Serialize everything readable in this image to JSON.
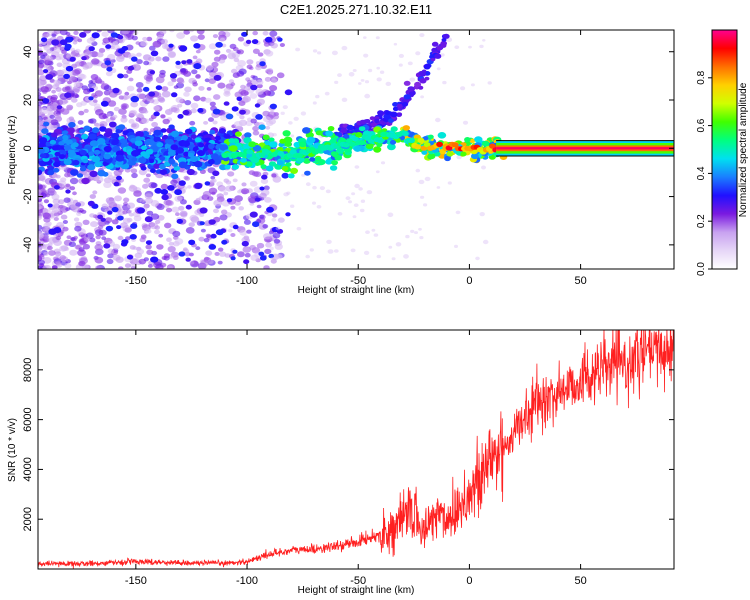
{
  "chart_data": [
    {
      "type": "heatmap",
      "title": "C2E1.2025.271.10.32.E11",
      "xlabel": "Height of straight line (km)",
      "ylabel": "Frequency (Hz)",
      "xlim": [
        -194,
        92
      ],
      "ylim": [
        -50,
        49
      ],
      "xticks": [
        -150,
        -100,
        -50,
        0,
        50
      ],
      "yticks": [
        -40,
        -20,
        0,
        20,
        40
      ],
      "colorbar": {
        "label": "Normalized spectral amplitude",
        "range": [
          0.0,
          1.0
        ],
        "ticks": [
          0.0,
          0.2,
          0.4,
          0.6,
          0.8
        ],
        "tick_labels": [
          "0.0",
          "0.2",
          "0.4",
          "0.6",
          "0.8"
        ],
        "colors": [
          "#ffffff",
          "#e6d6f7",
          "#c8a2f0",
          "#7a1ae0",
          "#2010ff",
          "#1a7fff",
          "#00e0f0",
          "#00ff80",
          "#40ff00",
          "#d0ff00",
          "#ffd000",
          "#ff7000",
          "#ff0000",
          "#ff0090"
        ]
      },
      "series": [
        {
          "name": "main Doppler trace",
          "x": [
            -110,
            -95,
            -80,
            -70,
            -60,
            -50,
            -40,
            -30,
            -25,
            -20,
            -10,
            0,
            5,
            10,
            15,
            92
          ],
          "y": [
            -3,
            -2.5,
            -2,
            -1,
            1,
            3,
            4,
            6,
            2,
            1,
            0,
            0,
            -1,
            0,
            0,
            0
          ]
        },
        {
          "name": "upper branch",
          "x": [
            -60,
            -50,
            -40,
            -35,
            -30,
            -25,
            -20,
            -15,
            -10
          ],
          "y": [
            5,
            8,
            11,
            13,
            18,
            26,
            32,
            40,
            46
          ]
        }
      ]
    },
    {
      "type": "line",
      "xlabel": "Height of straight line (km)",
      "ylabel": "SNR (10 * v/v)",
      "xlim": [
        -194,
        92
      ],
      "ylim": [
        0,
        9600
      ],
      "xticks": [
        -150,
        -100,
        -50,
        0,
        50
      ],
      "yticks": [
        2000,
        4000,
        6000,
        8000
      ],
      "color": "#ff2020",
      "series": [
        {
          "name": "SNR",
          "x": [
            -194,
            -170,
            -150,
            -130,
            -110,
            -100,
            -90,
            -80,
            -70,
            -60,
            -50,
            -40,
            -35,
            -30,
            -27,
            -25,
            -22,
            -20,
            -15,
            -10,
            -5,
            0,
            5,
            10,
            15,
            20,
            25,
            30,
            35,
            40,
            45,
            50,
            55,
            60,
            65,
            70,
            75,
            80,
            85,
            92
          ],
          "y": [
            200,
            220,
            300,
            250,
            230,
            300,
            600,
            750,
            800,
            900,
            1100,
            1400,
            1600,
            1900,
            2500,
            2300,
            1600,
            1500,
            2300,
            2000,
            2500,
            3000,
            3500,
            4500,
            4800,
            5500,
            6000,
            6700,
            6800,
            7100,
            7300,
            7600,
            7800,
            8000,
            8300,
            8100,
            8500,
            8700,
            8700,
            8900
          ]
        }
      ]
    }
  ]
}
